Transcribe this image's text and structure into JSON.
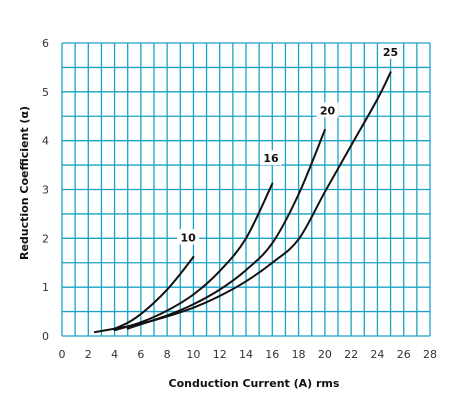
{
  "chart_data": {
    "type": "line",
    "title": "",
    "xlabel": "Conduction Current (A) rms",
    "ylabel": "Reduction Coefficient (α)",
    "xlim": [
      0,
      28
    ],
    "ylim": [
      0,
      6
    ],
    "x_ticks": [
      0,
      2,
      4,
      6,
      8,
      10,
      12,
      14,
      16,
      18,
      20,
      22,
      24,
      26,
      28
    ],
    "y_ticks": [
      0,
      1,
      2,
      3,
      4,
      5,
      6
    ],
    "x_minor_step": 1,
    "y_minor_step": 0.5,
    "grid": true,
    "grid_color": "#1aa3c6",
    "line_color": "#111111",
    "series": [
      {
        "name": "10",
        "points": [
          [
            4,
            0.15
          ],
          [
            5,
            0.27
          ],
          [
            6,
            0.45
          ],
          [
            7,
            0.68
          ],
          [
            8,
            0.95
          ],
          [
            9,
            1.27
          ],
          [
            10,
            1.62
          ]
        ]
      },
      {
        "name": "16",
        "points": [
          [
            4,
            0.12
          ],
          [
            6,
            0.28
          ],
          [
            8,
            0.52
          ],
          [
            10,
            0.85
          ],
          [
            12,
            1.33
          ],
          [
            14,
            2.0
          ],
          [
            16,
            3.12
          ]
        ]
      },
      {
        "name": "20",
        "points": [
          [
            5,
            0.15
          ],
          [
            8,
            0.42
          ],
          [
            10,
            0.65
          ],
          [
            12,
            0.95
          ],
          [
            14,
            1.35
          ],
          [
            16,
            1.9
          ],
          [
            18,
            2.9
          ],
          [
            20,
            4.22
          ]
        ]
      },
      {
        "name": "25",
        "points": [
          [
            2.5,
            0.08
          ],
          [
            4,
            0.15
          ],
          [
            6,
            0.25
          ],
          [
            8,
            0.4
          ],
          [
            10,
            0.58
          ],
          [
            12,
            0.82
          ],
          [
            14,
            1.12
          ],
          [
            16,
            1.5
          ],
          [
            18,
            1.98
          ],
          [
            20,
            2.95
          ],
          [
            22,
            3.9
          ],
          [
            24,
            4.85
          ],
          [
            25,
            5.4
          ]
        ]
      }
    ],
    "series_labels": [
      {
        "text": "10",
        "at": [
          9.6,
          2.0
        ]
      },
      {
        "text": "16",
        "at": [
          15.9,
          3.62
        ]
      },
      {
        "text": "20",
        "at": [
          20.2,
          4.6
        ]
      },
      {
        "text": "25",
        "at": [
          25.0,
          5.8
        ]
      }
    ]
  }
}
